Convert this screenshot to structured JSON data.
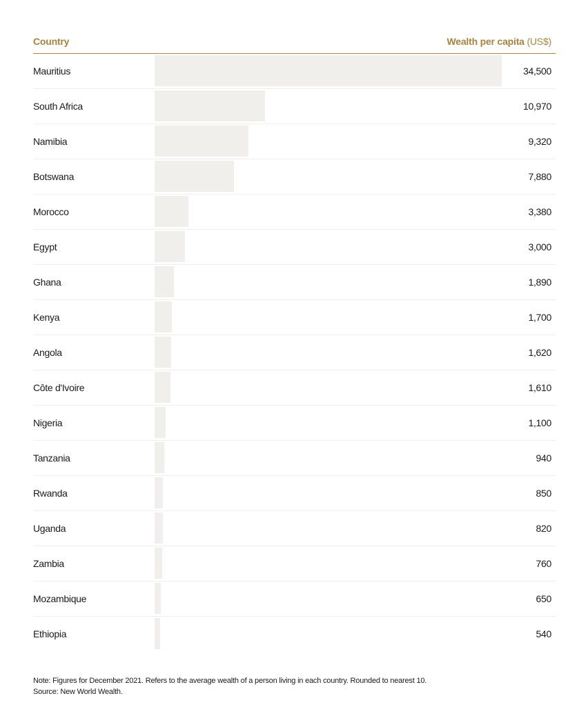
{
  "header": {
    "country_label": "Country",
    "value_label_bold": "Wealth per capita",
    "value_label_unit": " (US$)"
  },
  "colors": {
    "accent": "#a8823f",
    "bar": "#f1efec",
    "divider": "#eeeeee"
  },
  "chart_data": {
    "type": "bar",
    "orientation": "horizontal",
    "xlim": [
      0,
      34500
    ],
    "grid": false,
    "categories": [
      "Mauritius",
      "South Africa",
      "Namibia",
      "Botswana",
      "Morocco",
      "Egypt",
      "Ghana",
      "Kenya",
      "Angola",
      "Côte d'Ivoire",
      "Nigeria",
      "Tanzania",
      "Rwanda",
      "Uganda",
      "Zambia",
      "Mozambique",
      "Ethiopia"
    ],
    "values": [
      34500,
      10970,
      9320,
      7880,
      3380,
      3000,
      1890,
      1700,
      1620,
      1610,
      1100,
      940,
      850,
      820,
      760,
      650,
      540
    ],
    "value_labels": [
      "34,500",
      "10,970",
      "9,320",
      "7,880",
      "3,380",
      "3,000",
      "1,890",
      "1,700",
      "1,620",
      "1,610",
      "1,100",
      "940",
      "850",
      "820",
      "760",
      "650",
      "540"
    ]
  },
  "footer": {
    "note": "Note: Figures for December 2021. Refers to the average wealth of a person living in each country. Rounded to nearest 10.",
    "source": "Source: New World Wealth."
  }
}
